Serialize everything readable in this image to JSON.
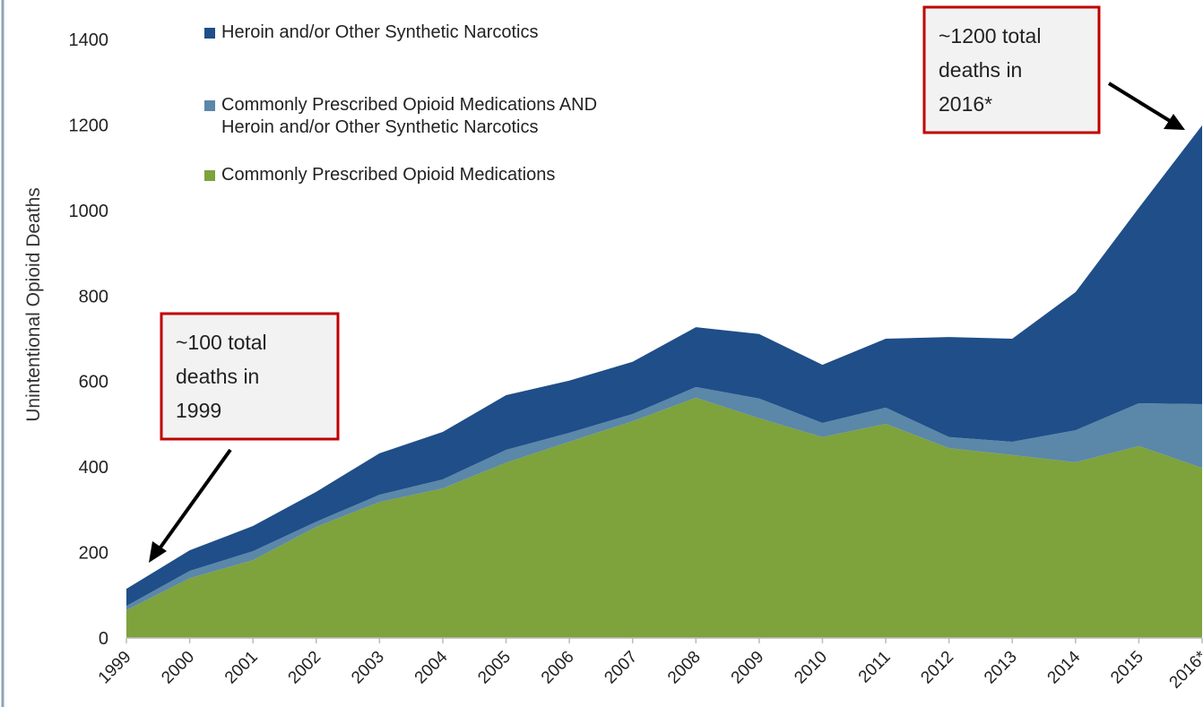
{
  "chart_data": {
    "type": "stacked_area",
    "y_label": "Unintentional Opioid Deaths",
    "categories": [
      "1999",
      "2000",
      "2001",
      "2002",
      "2003",
      "2004",
      "2005",
      "2006",
      "2007",
      "2008",
      "2009",
      "2010",
      "2011",
      "2012",
      "2013",
      "2014",
      "2015",
      "2016*"
    ],
    "series": [
      {
        "name": "Commonly Prescribed Opioid Medications",
        "color": "#7ea23c",
        "values": [
          65,
          140,
          182,
          260,
          318,
          350,
          410,
          459,
          507,
          562,
          514,
          470,
          501,
          444,
          428,
          411,
          449,
          398
        ]
      },
      {
        "name": "Commonly Prescribed Opioid Medications AND Heroin and/or Other Synthetic Narcotics",
        "color": "#5b87a9",
        "values": [
          10,
          17,
          21,
          12,
          17,
          21,
          30,
          21,
          17,
          25,
          46,
          33,
          38,
          26,
          31,
          75,
          100,
          149
        ]
      },
      {
        "name": "Heroin and/or Other Synthetic Narcotics",
        "color": "#1f4e89",
        "values": [
          40,
          48,
          59,
          70,
          97,
          111,
          128,
          122,
          122,
          140,
          151,
          136,
          161,
          234,
          241,
          323,
          457,
          652
        ]
      }
    ],
    "ylim": [
      0,
      1400
    ],
    "yticks": [
      0,
      200,
      400,
      600,
      800,
      1000,
      1200,
      1400
    ],
    "annotations": [
      {
        "lines": [
          "~1200 total",
          "deaths in",
          "2016*"
        ]
      },
      {
        "lines": [
          "~100 total",
          "deaths in",
          "1999"
        ]
      }
    ]
  }
}
